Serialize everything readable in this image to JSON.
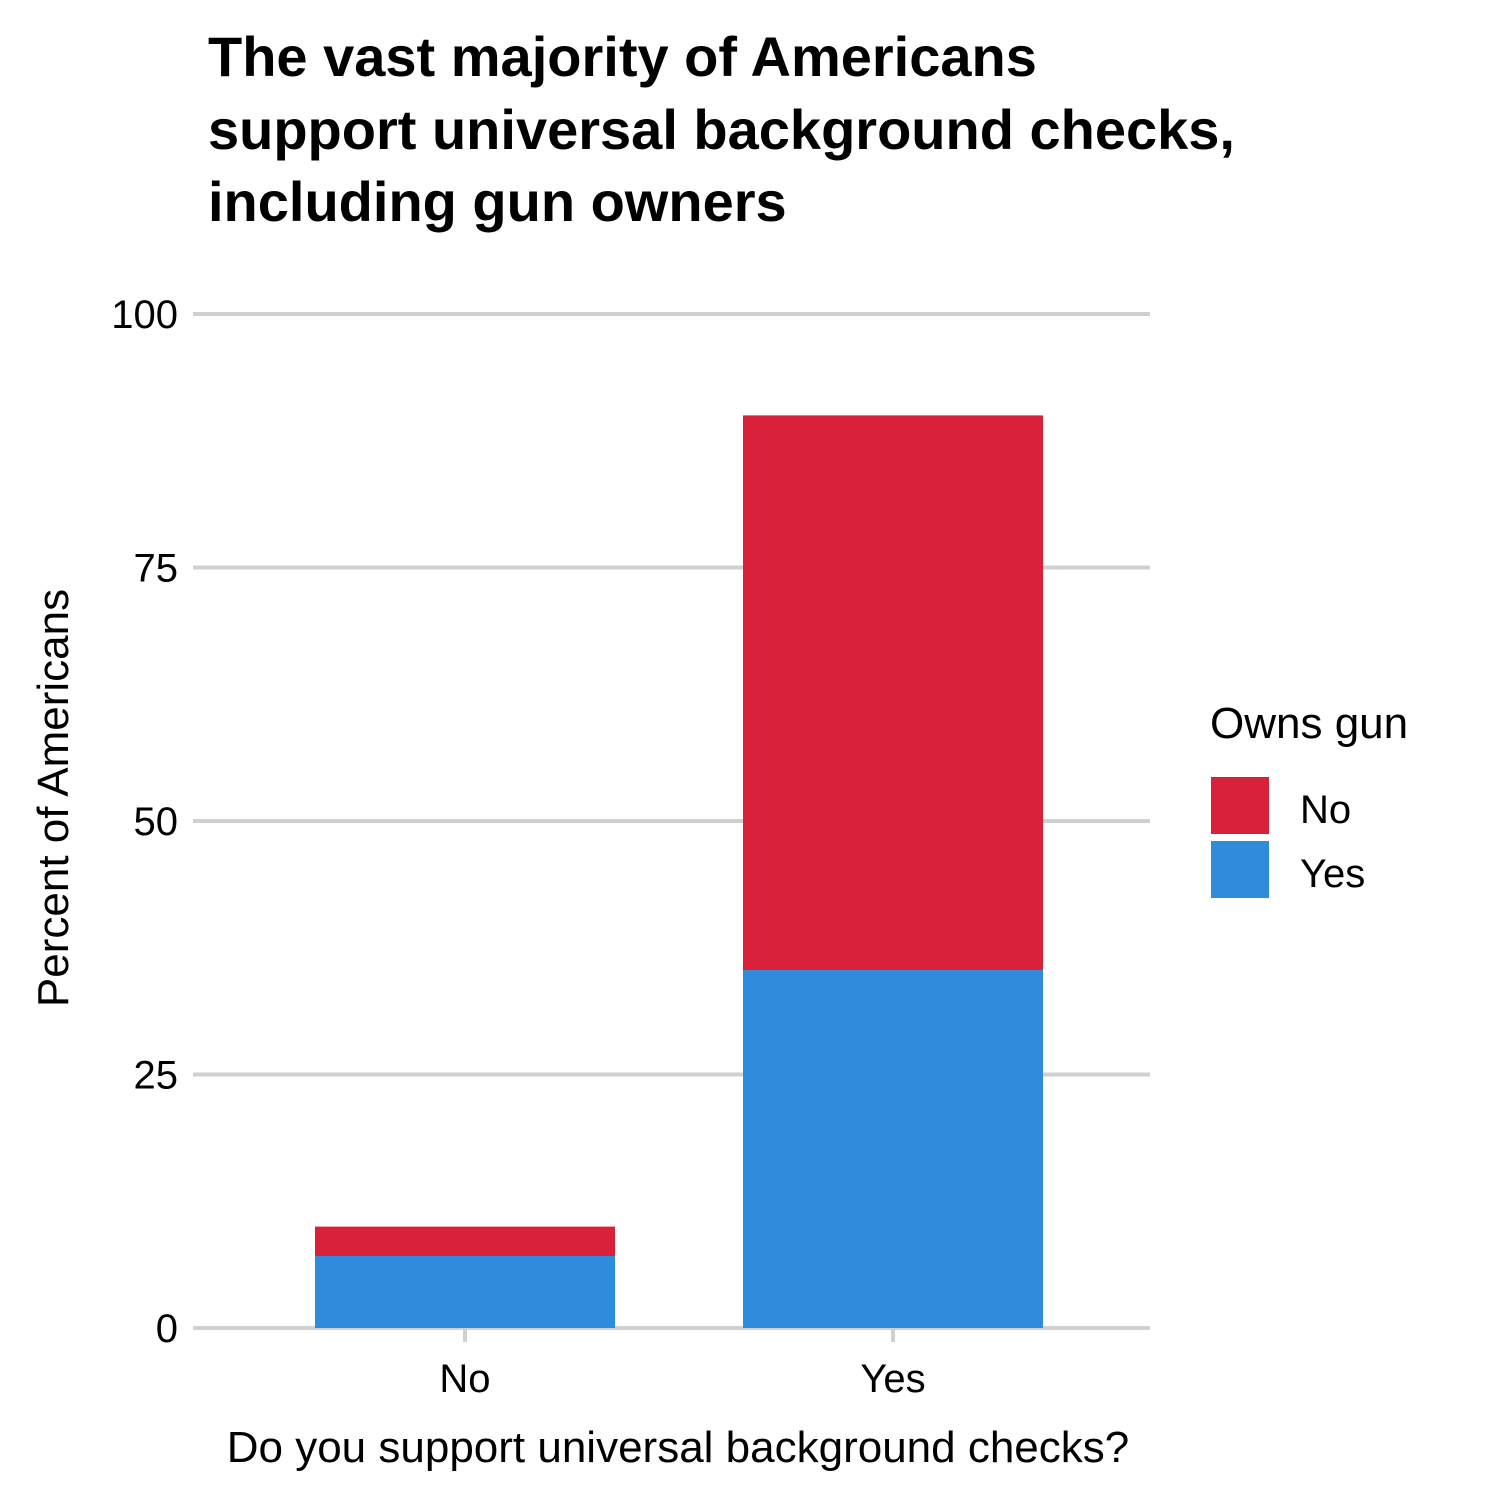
{
  "chart_data": {
    "type": "bar",
    "stacked": true,
    "title_lines": [
      "The vast majority of Americans",
      "support universal background checks,",
      "including gun owners"
    ],
    "xlabel": "Do you support universal background checks?",
    "ylabel": "Percent of Americans",
    "categories": [
      "No",
      "Yes"
    ],
    "series": [
      {
        "name": "Yes",
        "color": "#2F8CDC",
        "values": [
          7.1,
          35.3
        ]
      },
      {
        "name": "No",
        "color": "#D9213B",
        "values": [
          2.9,
          54.7
        ]
      }
    ],
    "ylim": [
      0,
      100
    ],
    "yticks": [
      "0",
      "25",
      "50",
      "75",
      "100"
    ],
    "ytick_values": [
      0,
      25,
      50,
      75,
      100
    ],
    "grid": true,
    "legend": {
      "title": "Owns gun",
      "placement": "right",
      "entries": [
        {
          "label": "No",
          "color": "#D9213B"
        },
        {
          "label": "Yes",
          "color": "#2F8CDC"
        }
      ]
    }
  }
}
